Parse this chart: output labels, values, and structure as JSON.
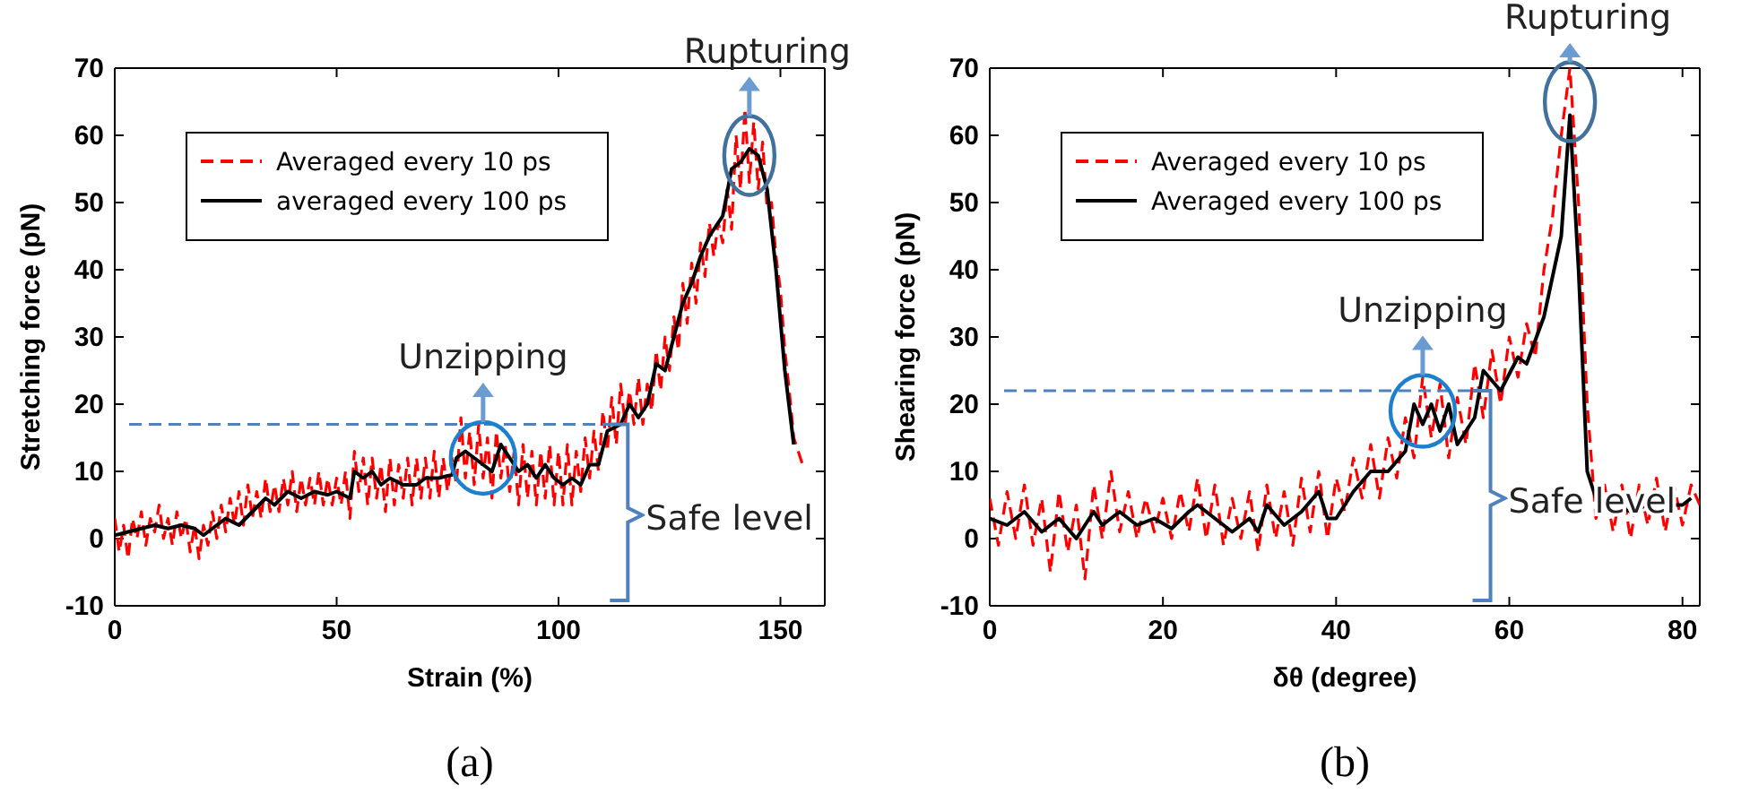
{
  "chart_data": [
    {
      "type": "line",
      "xlabel": "Strain (%)",
      "ylabel": "Stretching force (pN)",
      "xlim": [
        0,
        160
      ],
      "ylim": [
        -10,
        70
      ],
      "xticks": [
        0,
        50,
        100,
        150
      ],
      "yticks": [
        -10,
        0,
        10,
        20,
        30,
        40,
        50,
        60,
        70
      ],
      "legend": "top left",
      "series": [
        {
          "name": "Averaged every 10 ps",
          "color": "#ff0000",
          "line_style": "dashed",
          "x": [
            0,
            1,
            2,
            3,
            4,
            5,
            6,
            7,
            8,
            9,
            10,
            11,
            12,
            13,
            14,
            15,
            16,
            17,
            18,
            19,
            20,
            21,
            22,
            23,
            24,
            25,
            26,
            27,
            28,
            29,
            30,
            31,
            32,
            33,
            34,
            35,
            36,
            37,
            38,
            39,
            40,
            41,
            42,
            43,
            44,
            45,
            46,
            47,
            48,
            49,
            50,
            51,
            52,
            53,
            54,
            55,
            56,
            57,
            58,
            59,
            60,
            61,
            62,
            63,
            64,
            65,
            66,
            67,
            68,
            69,
            70,
            71,
            72,
            73,
            74,
            75,
            76,
            77,
            78,
            79,
            80,
            81,
            82,
            83,
            84,
            85,
            86,
            87,
            88,
            89,
            90,
            91,
            92,
            93,
            94,
            95,
            96,
            97,
            98,
            99,
            100,
            101,
            102,
            103,
            104,
            105,
            106,
            107,
            108,
            109,
            110,
            111,
            112,
            113,
            114,
            115,
            116,
            117,
            118,
            119,
            120,
            121,
            122,
            123,
            124,
            125,
            126,
            127,
            128,
            129,
            130,
            131,
            132,
            133,
            134,
            135,
            136,
            137,
            138,
            139,
            140,
            141,
            142,
            143,
            144,
            145,
            146,
            147,
            148,
            149,
            150,
            151,
            152,
            153,
            154,
            155
          ],
          "values": [
            3,
            -2,
            2,
            -3,
            3,
            0,
            4,
            -1,
            3,
            1,
            5,
            0,
            3,
            -1,
            4,
            0,
            3,
            -2,
            2,
            -3,
            2,
            -1,
            4,
            0,
            5,
            1,
            6,
            2,
            7,
            2,
            8,
            3,
            7,
            3,
            9,
            4,
            8,
            4,
            9,
            5,
            10,
            4,
            9,
            5,
            9,
            5,
            10,
            5,
            9,
            5,
            9,
            5,
            10,
            3,
            13,
            7,
            12,
            5,
            12,
            6,
            11,
            4,
            12,
            5,
            11,
            6,
            12,
            5,
            12,
            6,
            12,
            6,
            13,
            6,
            12,
            7,
            12,
            8,
            18,
            9,
            16,
            8,
            17,
            9,
            15,
            6,
            16,
            9,
            14,
            7,
            13,
            5,
            14,
            6,
            13,
            5,
            13,
            6,
            14,
            5,
            13,
            5,
            14,
            5,
            13,
            7,
            15,
            9,
            16,
            10,
            19,
            13,
            21,
            14,
            23,
            17,
            22,
            17,
            24,
            17,
            23,
            19,
            28,
            22,
            30,
            25,
            33,
            28,
            38,
            32,
            41,
            35,
            44,
            39,
            47,
            42,
            47,
            44,
            52,
            46,
            60,
            52,
            64,
            53,
            62,
            52,
            59,
            49,
            50,
            42,
            37,
            28,
            22,
            15,
            13,
            11
          ]
        },
        {
          "name": "averaged every 100 ps",
          "color": "#000000",
          "line_style": "solid",
          "x": [
            0,
            3,
            6,
            9,
            12,
            15,
            18,
            20,
            22,
            25,
            28,
            31,
            34,
            36,
            39,
            42,
            45,
            48,
            50,
            53,
            54,
            56,
            58,
            60,
            62,
            65,
            68,
            70,
            73,
            76,
            77,
            79,
            81,
            83,
            85,
            87,
            89,
            91,
            93,
            95,
            97,
            99,
            101,
            103,
            105,
            107,
            109,
            111,
            114,
            116,
            118,
            120,
            122,
            124,
            126,
            128,
            130,
            132,
            134,
            137,
            139,
            141,
            143,
            145,
            147,
            149,
            151,
            153
          ],
          "values": [
            0.5,
            1,
            1.5,
            2,
            1.5,
            2,
            1.5,
            0.5,
            1.5,
            3,
            2,
            4,
            6,
            5,
            7,
            6,
            7,
            6.5,
            7,
            6,
            10,
            9,
            10,
            8,
            9,
            8,
            8,
            9,
            9,
            9.5,
            12,
            13,
            12,
            11,
            10,
            14,
            12,
            10,
            11,
            9,
            11,
            9,
            8,
            9,
            8,
            11,
            11,
            16,
            17,
            20,
            18,
            20,
            26,
            25,
            30,
            35,
            38,
            42,
            45,
            48,
            55,
            56,
            58,
            57,
            52,
            40,
            25,
            14
          ]
        }
      ],
      "ref_lines": [
        {
          "axis": "y",
          "value": 17,
          "label": "Safe level",
          "color": "#4f81bd",
          "line_style": "dashed"
        }
      ],
      "annotations": [
        {
          "text": "Unzipping",
          "x": 83,
          "y": 12
        },
        {
          "text": "Rupturing",
          "x": 143,
          "y": 57
        },
        "(a)"
      ]
    },
    {
      "type": "line",
      "xlabel": "δθ (degree)",
      "ylabel": "Shearing force (pN)",
      "xlim": [
        0,
        82
      ],
      "ylim": [
        -10,
        70
      ],
      "xticks": [
        0,
        20,
        40,
        60,
        80
      ],
      "yticks": [
        -10,
        0,
        10,
        20,
        30,
        40,
        50,
        60,
        70
      ],
      "legend": "top left",
      "series": [
        {
          "name": "Averaged every 10 ps",
          "color": "#ff0000",
          "line_style": "dashed",
          "x": [
            0,
            1,
            2,
            3,
            4,
            5,
            6,
            7,
            8,
            9,
            10,
            11,
            12,
            13,
            14,
            15,
            16,
            17,
            18,
            19,
            20,
            21,
            22,
            23,
            24,
            25,
            26,
            27,
            28,
            29,
            30,
            31,
            32,
            33,
            34,
            35,
            36,
            37,
            38,
            39,
            40,
            41,
            42,
            43,
            44,
            45,
            46,
            47,
            48,
            49,
            50,
            51,
            52,
            53,
            54,
            55,
            56,
            57,
            58,
            59,
            60,
            61,
            62,
            63,
            64,
            65,
            66,
            67,
            68,
            69,
            70,
            71,
            72,
            73,
            74,
            75,
            76,
            77,
            78,
            79,
            80,
            81,
            82
          ],
          "values": [
            6,
            -1,
            7,
            0,
            8,
            -1,
            6,
            -5,
            7,
            -2,
            5,
            -6,
            8,
            0,
            10,
            1,
            7,
            0,
            6,
            1,
            6,
            0,
            7,
            1,
            9,
            0,
            8,
            -1,
            6,
            0,
            7,
            -2,
            8,
            0,
            7,
            -1,
            9,
            1,
            10,
            0,
            9,
            4,
            12,
            6,
            14,
            6,
            15,
            9,
            18,
            12,
            24,
            15,
            23,
            12,
            21,
            14,
            26,
            18,
            28,
            20,
            30,
            24,
            32,
            27,
            40,
            48,
            60,
            70,
            50,
            20,
            3,
            8,
            1,
            8,
            0,
            8,
            2,
            9,
            1,
            8,
            2,
            8,
            5
          ]
        },
        {
          "name": "Averaged every 100 ps",
          "color": "#000000",
          "line_style": "solid",
          "x": [
            0,
            2,
            4,
            6,
            8,
            10,
            12,
            13,
            15,
            17,
            19,
            21,
            23,
            24,
            26,
            28,
            30,
            31,
            32,
            34,
            36,
            38,
            39,
            40,
            42,
            44,
            46,
            48,
            49,
            50,
            51,
            52,
            53,
            54,
            56,
            57,
            59,
            61,
            62,
            64,
            66,
            67,
            68,
            69,
            70,
            72,
            74,
            76,
            78,
            80,
            81
          ],
          "values": [
            3,
            2,
            4,
            1,
            3,
            0,
            4,
            2,
            4,
            2,
            3,
            1.5,
            4,
            5,
            3,
            1,
            3,
            1,
            5,
            2,
            4,
            7,
            3,
            3,
            7,
            10,
            10,
            13,
            20,
            17,
            20,
            16,
            20,
            14,
            18,
            25,
            22,
            27,
            26,
            33,
            45,
            63,
            40,
            10,
            6,
            5,
            4,
            5,
            5,
            5,
            6
          ]
        }
      ],
      "ref_lines": [
        {
          "axis": "y",
          "value": 22,
          "label": "Safe level",
          "color": "#4f81bd",
          "line_style": "dashed"
        }
      ],
      "annotations": [
        {
          "text": "Unzipping",
          "x": 50,
          "y": 19
        },
        {
          "text": "Rupturing",
          "x": 67,
          "y": 65
        },
        "(b)"
      ]
    }
  ]
}
